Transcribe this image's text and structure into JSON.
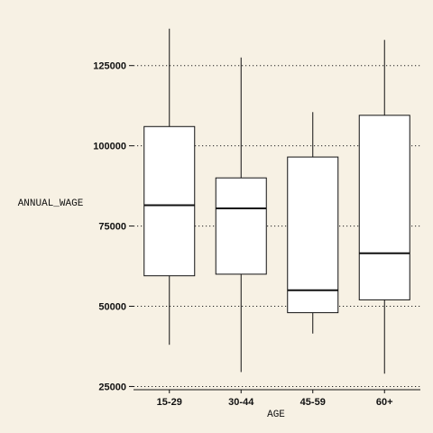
{
  "chart_data": {
    "type": "boxplot",
    "title": "",
    "xlabel": "AGE",
    "ylabel": "ANNUAL_WAGE",
    "ylim": [
      24000,
      137000
    ],
    "yticks": [
      25000,
      50000,
      75000,
      100000,
      125000
    ],
    "ytick_labels": [
      "25000",
      "50000",
      "75000",
      "100000",
      "125000"
    ],
    "grid": "horizontal-dotted",
    "categories": [
      "15-29",
      "30-44",
      "45-59",
      "60+"
    ],
    "boxes": [
      {
        "category": "15-29",
        "min": 38000,
        "q1": 59500,
        "median": 81500,
        "q3": 106000,
        "max": 136500
      },
      {
        "category": "30-44",
        "min": 29500,
        "q1": 60000,
        "median": 80500,
        "q3": 90000,
        "max": 127500
      },
      {
        "category": "45-59",
        "min": 41500,
        "q1": 48000,
        "median": 55000,
        "q3": 96500,
        "max": 110500
      },
      {
        "category": "60+",
        "min": 29000,
        "q1": 52000,
        "median": 66500,
        "q3": 109500,
        "max": 133000
      }
    ],
    "colors": {
      "background": "#f7f1e4",
      "box_fill": "#ffffff",
      "stroke": "#111111"
    }
  }
}
